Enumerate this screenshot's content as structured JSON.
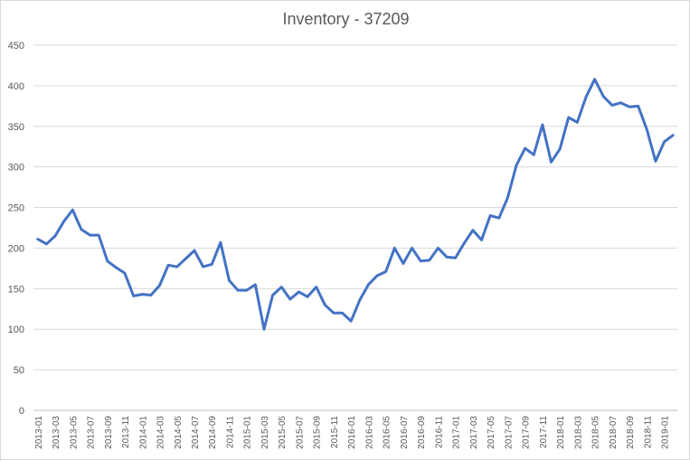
{
  "chart_data": {
    "type": "line",
    "title": "Inventory - 37209",
    "xlabel": "",
    "ylabel": "",
    "ylim": [
      0,
      450
    ],
    "y_ticks": [
      0,
      50,
      100,
      150,
      200,
      250,
      300,
      350,
      400,
      450
    ],
    "grid": true,
    "legend": "none",
    "line_color": "#4472c4",
    "x_tick_labels": [
      "2013-01",
      "2013-03",
      "2013-05",
      "2013-07",
      "2013-09",
      "2013-11",
      "2014-01",
      "2014-03",
      "2014-05",
      "2014-07",
      "2014-09",
      "2014-11",
      "2015-01",
      "2015-03",
      "2015-05",
      "2015-07",
      "2015-09",
      "2015-11",
      "2016-01",
      "2016-03",
      "2016-05",
      "2016-07",
      "2016-09",
      "2016-11",
      "2017-01",
      "2017-03",
      "2017-05",
      "2017-07",
      "2017-09",
      "2017-11",
      "2018-01",
      "2018-03",
      "2018-05",
      "2018-07",
      "2018-09",
      "2018-11",
      "2019-01"
    ],
    "x": [
      "2013-01",
      "2013-02",
      "2013-03",
      "2013-04",
      "2013-05",
      "2013-06",
      "2013-07",
      "2013-08",
      "2013-09",
      "2013-10",
      "2013-11",
      "2013-12",
      "2014-01",
      "2014-02",
      "2014-03",
      "2014-04",
      "2014-05",
      "2014-06",
      "2014-07",
      "2014-08",
      "2014-09",
      "2014-10",
      "2014-11",
      "2014-12",
      "2015-01",
      "2015-02",
      "2015-03",
      "2015-04",
      "2015-05",
      "2015-06",
      "2015-07",
      "2015-08",
      "2015-09",
      "2015-10",
      "2015-11",
      "2015-12",
      "2016-01",
      "2016-02",
      "2016-03",
      "2016-04",
      "2016-05",
      "2016-06",
      "2016-07",
      "2016-08",
      "2016-09",
      "2016-10",
      "2016-11",
      "2016-12",
      "2017-01",
      "2017-02",
      "2017-03",
      "2017-04",
      "2017-05",
      "2017-06",
      "2017-07",
      "2017-08",
      "2017-09",
      "2017-10",
      "2017-11",
      "2017-12",
      "2018-01",
      "2018-02",
      "2018-03",
      "2018-04",
      "2018-05",
      "2018-06",
      "2018-07",
      "2018-08",
      "2018-09",
      "2018-10",
      "2018-11",
      "2018-12",
      "2019-01",
      "2019-02"
    ],
    "series": [
      {
        "values": [
          211,
          205,
          215,
          233,
          247,
          223,
          216,
          216,
          184,
          176,
          169,
          141,
          143,
          142,
          154,
          179,
          177,
          187,
          197,
          177,
          180,
          207,
          160,
          148,
          148,
          155,
          100,
          142,
          152,
          137,
          146,
          140,
          152,
          130,
          120,
          120,
          110,
          136,
          155,
          166,
          171,
          200,
          181,
          200,
          184,
          185,
          200,
          189,
          188,
          206,
          222,
          210,
          240,
          237,
          262,
          302,
          323,
          315,
          352,
          306,
          322,
          361,
          355,
          386,
          408,
          387,
          376,
          379,
          374,
          375,
          346,
          307,
          331,
          339
        ]
      }
    ]
  }
}
